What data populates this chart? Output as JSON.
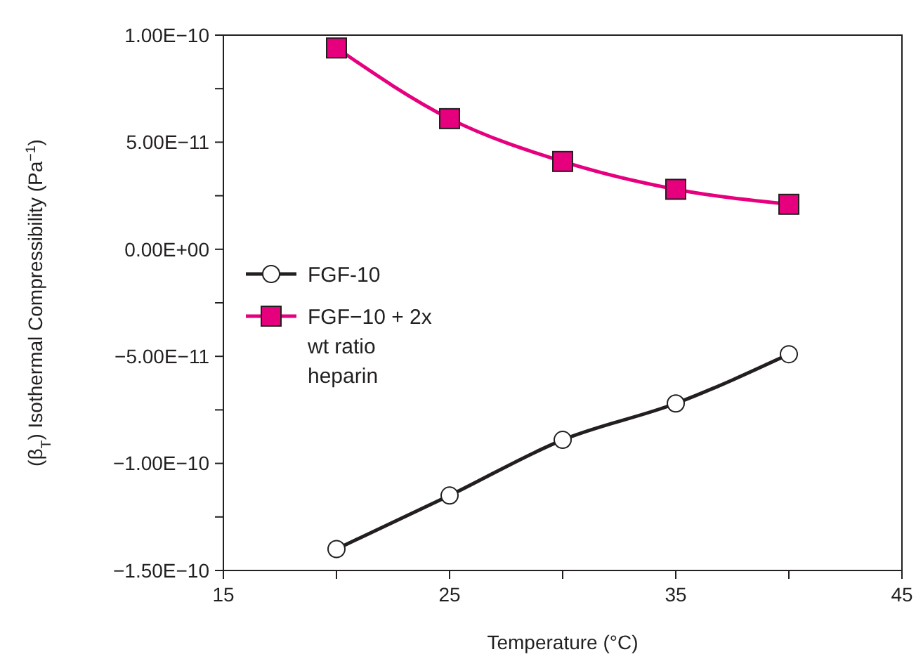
{
  "chart_data": {
    "type": "line",
    "xlabel": "Temperature (°C)",
    "ylabel": "(β$_{T}$) Isothermal Compressibility (Pa$^{−1}$)",
    "x": [
      20,
      25,
      30,
      35,
      40
    ],
    "series": [
      {
        "name": "FGF-10",
        "color": "#231f20",
        "marker": "circle",
        "values": [
          -1.4e-10,
          -1.15e-10,
          -8.9e-11,
          -7.2e-11,
          -4.9e-11
        ]
      },
      {
        "name": "FGF−10 + 2x wt ratio heparin",
        "color": "#e6007e",
        "marker": "square",
        "values": [
          9.4e-11,
          6.1e-11,
          4.1e-11,
          2.8e-11,
          2.1e-11
        ]
      }
    ],
    "xlim": [
      15,
      45
    ],
    "xticks": [
      15,
      {
        "value": 20,
        "label": null
      },
      25,
      {
        "value": 30,
        "label": null
      },
      35,
      {
        "value": 40,
        "label": null
      },
      45
    ],
    "ylim": [
      -1.5e-10,
      1e-10
    ],
    "yticks": [
      {
        "value": -1.5e-10,
        "label": "−1.50E−10"
      },
      {
        "value": -1.25e-10,
        "label": null
      },
      {
        "value": -1e-10,
        "label": "−1.00E−10"
      },
      {
        "value": -7.5e-11,
        "label": null
      },
      {
        "value": -5e-11,
        "label": "−5.00E−11"
      },
      {
        "value": -2.5e-11,
        "label": null
      },
      {
        "value": 0,
        "label": "0.00E+00"
      },
      {
        "value": 2.5e-11,
        "label": null
      },
      {
        "value": 5e-11,
        "label": "5.00E−11"
      },
      {
        "value": 7.5e-11,
        "label": null
      },
      {
        "value": 1e-10,
        "label": "1.00E−10"
      }
    ],
    "legend": "left",
    "grid": false,
    "line_style": "solid"
  }
}
